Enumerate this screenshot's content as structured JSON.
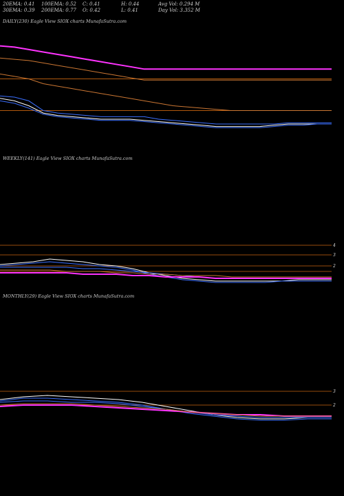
{
  "header": {
    "row1": [
      "20EMA: 0.41",
      "100EMA: 0.52",
      "C: 0.41",
      "H: 0.44",
      "Avg Vol: 0.294  M"
    ],
    "row2": [
      "30EMA: 0.39",
      "200EMA: 0.77",
      "O: 0.42",
      "L: 0.41",
      "Day Vol: 3.352  M"
    ]
  },
  "panels": [
    {
      "label": "DAILY(230) Eagle   View  SIOX  charts MunafaSutra.com"
    },
    {
      "label": "WEEKLY(141) Eagle   View  SIOX  charts MunafaSutra.com"
    },
    {
      "label": "MONTHLY(29) Eagle   View  SIOX  charts MunafaSutra.com"
    }
  ],
  "chart_data": [
    {
      "type": "line",
      "name": "daily",
      "x": [
        0,
        10,
        20,
        30,
        40,
        50,
        60,
        70,
        80,
        90,
        100,
        110,
        120,
        130,
        140,
        150,
        160,
        170,
        180,
        190,
        200,
        210,
        220,
        230
      ],
      "series": [
        {
          "values": [
            1.05,
            1.04,
            1.02,
            1.0,
            0.98,
            0.96,
            0.94,
            0.92,
            0.9,
            0.88,
            0.86,
            0.86,
            0.86,
            0.86,
            0.86,
            0.86,
            0.86,
            0.86,
            0.86,
            0.86,
            0.86,
            0.86,
            0.86,
            0.86
          ],
          "color": "#ff33ff"
        },
        {
          "values": [
            0.95,
            0.94,
            0.93,
            0.91,
            0.89,
            0.87,
            0.85,
            0.83,
            0.81,
            0.79,
            0.77,
            0.77,
            0.77,
            0.77,
            0.77,
            0.77,
            0.77,
            0.77,
            0.77,
            0.77,
            0.77,
            0.77,
            0.77,
            0.77
          ],
          "color": "#cc7733"
        },
        {
          "values": [
            0.82,
            0.8,
            0.78,
            0.74,
            0.72,
            0.7,
            0.68,
            0.66,
            0.64,
            0.62,
            0.6,
            0.58,
            0.56,
            0.55,
            0.54,
            0.53,
            0.52,
            0.52,
            0.52,
            0.52,
            0.52,
            0.52,
            0.52,
            0.52
          ],
          "color": "#cc7733"
        },
        {
          "values": [
            0.62,
            0.6,
            0.56,
            0.5,
            0.48,
            0.47,
            0.46,
            0.45,
            0.45,
            0.45,
            0.44,
            0.43,
            0.42,
            0.41,
            0.4,
            0.39,
            0.39,
            0.39,
            0.39,
            0.4,
            0.41,
            0.41,
            0.41,
            0.41
          ],
          "color": "#ffffff"
        },
        {
          "values": [
            0.6,
            0.58,
            0.54,
            0.49,
            0.47,
            0.46,
            0.45,
            0.44,
            0.44,
            0.44,
            0.43,
            0.42,
            0.41,
            0.4,
            0.39,
            0.38,
            0.38,
            0.38,
            0.38,
            0.39,
            0.4,
            0.4,
            0.41,
            0.41
          ],
          "color": "#3b6fff"
        },
        {
          "values": [
            0.64,
            0.63,
            0.6,
            0.52,
            0.5,
            0.49,
            0.48,
            0.47,
            0.47,
            0.47,
            0.47,
            0.45,
            0.44,
            0.43,
            0.42,
            0.41,
            0.41,
            0.41,
            0.41,
            0.41,
            0.42,
            0.42,
            0.42,
            0.42
          ],
          "color": "#3b6fff"
        }
      ],
      "hlines": [
        {
          "value": 0.78,
          "color": "#cc6611"
        },
        {
          "value": 0.52,
          "color": "#cc6611"
        }
      ],
      "ylim": [
        0.1,
        1.2
      ]
    },
    {
      "type": "line",
      "name": "weekly",
      "x": [
        0,
        7,
        14,
        21,
        28,
        35,
        42,
        49,
        56,
        63,
        70,
        77,
        84,
        91,
        98,
        105,
        112,
        119,
        126,
        133,
        140
      ],
      "series": [
        {
          "values": [
            0.28,
            0.29,
            0.3,
            0.32,
            0.31,
            0.3,
            0.28,
            0.27,
            0.25,
            0.22,
            0.2,
            0.18,
            0.17,
            0.16,
            0.16,
            0.16,
            0.16,
            0.16,
            0.17,
            0.17,
            0.17
          ],
          "color": "#ffffff"
        },
        {
          "values": [
            0.27,
            0.28,
            0.29,
            0.3,
            0.29,
            0.28,
            0.27,
            0.26,
            0.24,
            0.21,
            0.19,
            0.17,
            0.16,
            0.15,
            0.15,
            0.15,
            0.15,
            0.16,
            0.16,
            0.16,
            0.16
          ],
          "color": "#3b6fff"
        },
        {
          "values": [
            0.26,
            0.26,
            0.26,
            0.26,
            0.26,
            0.25,
            0.25,
            0.24,
            0.23,
            0.22,
            0.21,
            0.2,
            0.19,
            0.18,
            0.18,
            0.18,
            0.18,
            0.18,
            0.18,
            0.18,
            0.18
          ],
          "color": "#3b6fff"
        },
        {
          "values": [
            0.22,
            0.22,
            0.22,
            0.22,
            0.22,
            0.21,
            0.21,
            0.21,
            0.2,
            0.2,
            0.19,
            0.19,
            0.19,
            0.18,
            0.18,
            0.18,
            0.18,
            0.18,
            0.18,
            0.18,
            0.18
          ],
          "color": "#ff33ff"
        },
        {
          "values": [
            0.24,
            0.24,
            0.24,
            0.24,
            0.23,
            0.23,
            0.23,
            0.22,
            0.22,
            0.21,
            0.21,
            0.2,
            0.2,
            0.2,
            0.19,
            0.19,
            0.19,
            0.19,
            0.19,
            0.19,
            0.19
          ],
          "color": "#cc7733"
        }
      ],
      "hlines": [
        {
          "value": 0.42,
          "color": "#cc6611"
        },
        {
          "value": 0.35,
          "color": "#cc6611"
        },
        {
          "value": 0.27,
          "color": "#cc6611"
        },
        {
          "value": 0.23,
          "color": "#cc6611"
        }
      ],
      "ytick_labels": [
        "4",
        "3",
        "2"
      ],
      "ylim": [
        0,
        1
      ]
    },
    {
      "type": "line",
      "name": "monthly",
      "x": [
        0,
        2,
        4,
        6,
        8,
        10,
        12,
        14,
        16,
        18,
        20,
        22,
        24,
        26,
        28
      ],
      "series": [
        {
          "values": [
            0.3,
            0.32,
            0.33,
            0.32,
            0.31,
            0.3,
            0.28,
            0.25,
            0.22,
            0.19,
            0.17,
            0.16,
            0.16,
            0.17,
            0.17
          ],
          "color": "#ffffff"
        },
        {
          "values": [
            0.29,
            0.31,
            0.31,
            0.3,
            0.29,
            0.28,
            0.26,
            0.23,
            0.2,
            0.18,
            0.16,
            0.15,
            0.15,
            0.16,
            0.16
          ],
          "color": "#3b6fff"
        },
        {
          "values": [
            0.28,
            0.29,
            0.29,
            0.28,
            0.28,
            0.27,
            0.25,
            0.23,
            0.21,
            0.19,
            0.18,
            0.17,
            0.17,
            0.17,
            0.17
          ],
          "color": "#3b6fff"
        },
        {
          "values": [
            0.25,
            0.26,
            0.26,
            0.26,
            0.25,
            0.24,
            0.23,
            0.22,
            0.21,
            0.2,
            0.19,
            0.19,
            0.18,
            0.18,
            0.18
          ],
          "color": "#ff33ff"
        },
        {
          "values": [
            0.26,
            0.27,
            0.27,
            0.27,
            0.26,
            0.25,
            0.24,
            0.23,
            0.21,
            0.2,
            0.19,
            0.18,
            0.18,
            0.18,
            0.18
          ],
          "color": "#cc7733"
        }
      ],
      "hlines": [
        {
          "value": 0.36,
          "color": "#cc6611"
        },
        {
          "value": 0.26,
          "color": "#cc6611"
        }
      ],
      "ytick_labels": [
        "3",
        "2"
      ],
      "ylim": [
        0,
        1
      ]
    }
  ]
}
